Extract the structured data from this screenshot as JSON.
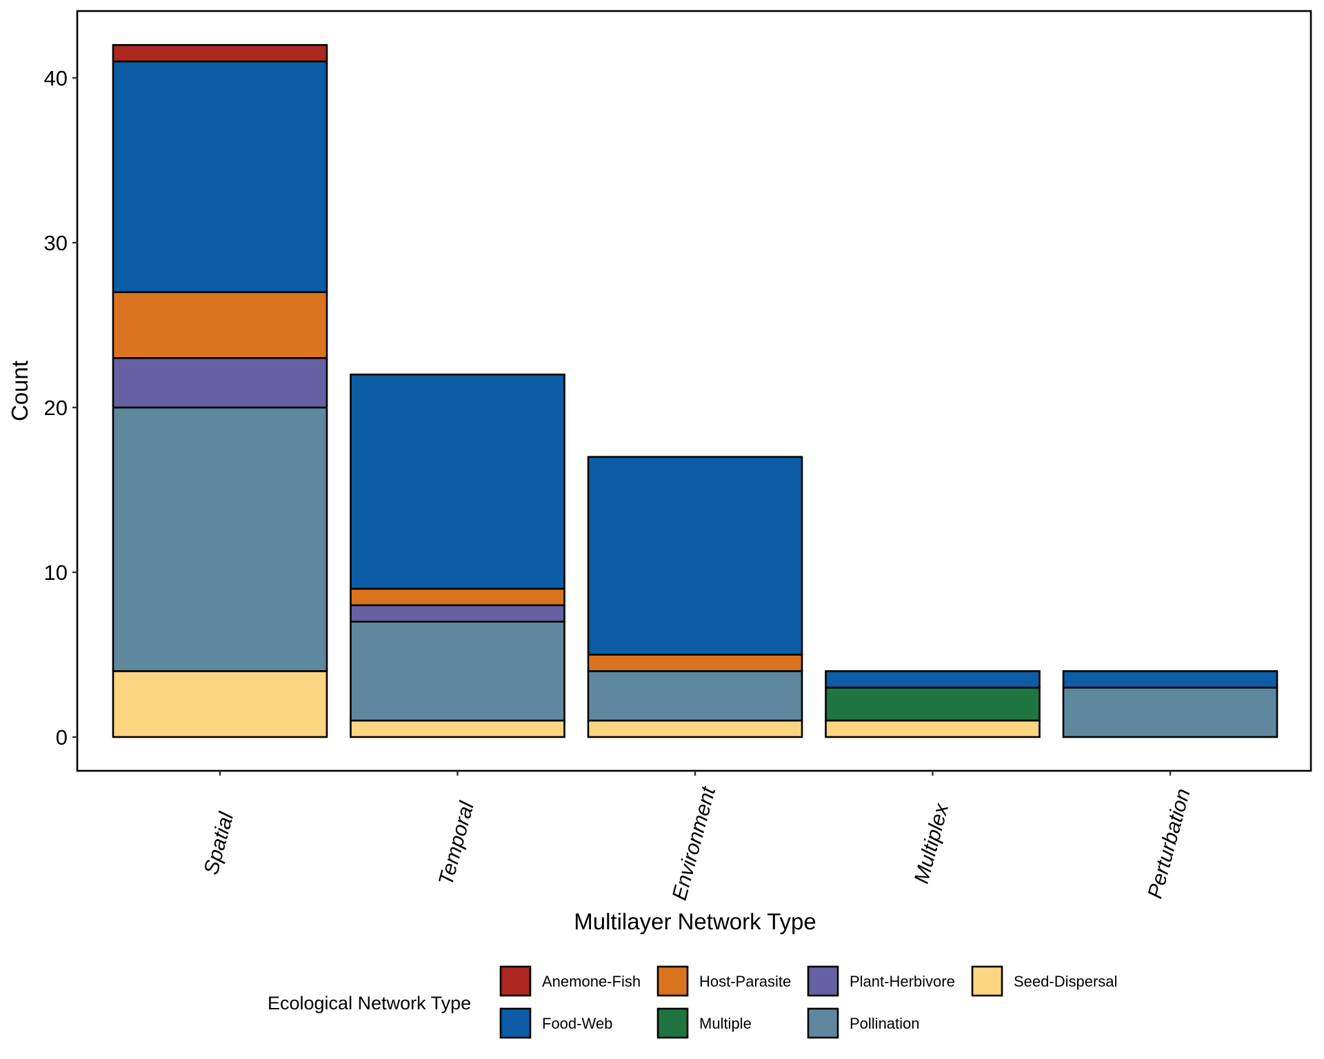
{
  "chart_data": {
    "type": "bar",
    "stacked": true,
    "title": "",
    "xlabel": "Multilayer Network Type",
    "ylabel": "Count",
    "ylim": [
      -2.1,
      44.1
    ],
    "yticks": [
      0,
      10,
      20,
      30,
      40
    ],
    "grid": false,
    "categories": [
      "Spatial",
      "Temporal",
      "Environment",
      "Multiplex",
      "Perturbation"
    ],
    "series": [
      {
        "name": "Seed-Dispersal",
        "color": "#FCD581",
        "values": [
          4,
          1,
          1,
          1,
          0
        ]
      },
      {
        "name": "Pollination",
        "color": "#5E889E",
        "values": [
          16,
          6,
          3,
          0,
          3
        ]
      },
      {
        "name": "Plant-Herbivore",
        "color": "#6661A2",
        "values": [
          3,
          1,
          0,
          0,
          0
        ]
      },
      {
        "name": "Multiple",
        "color": "#1F7540",
        "values": [
          0,
          0,
          0,
          2,
          0
        ]
      },
      {
        "name": "Host-Parasite",
        "color": "#D9731E",
        "values": [
          4,
          1,
          1,
          0,
          0
        ]
      },
      {
        "name": "Food-Web",
        "color": "#0C5DA6",
        "values": [
          14,
          13,
          12,
          1,
          1
        ]
      },
      {
        "name": "Anemone-Fish",
        "color": "#AB2720",
        "values": [
          1,
          0,
          0,
          0,
          0
        ]
      }
    ],
    "legend": {
      "title": "Ecological Network Type",
      "placement": "bottom",
      "order": [
        "Anemone-Fish",
        "Host-Parasite",
        "Plant-Herbivore",
        "Seed-Dispersal",
        "Food-Web",
        "Multiple",
        "Pollination"
      ]
    }
  }
}
